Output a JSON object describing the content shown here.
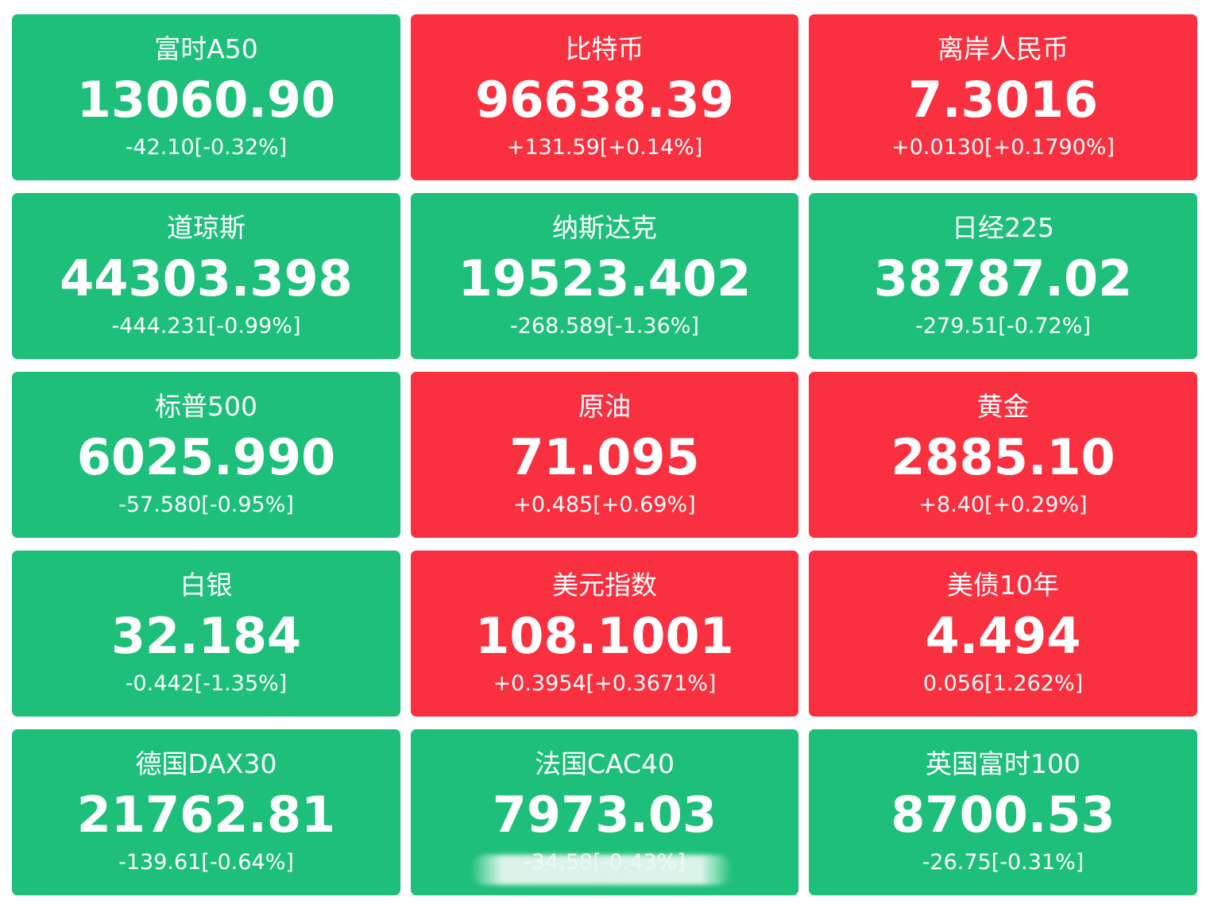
{
  "tiles": [
    {
      "name": "富时A50",
      "price": "13060.90",
      "change": "-42.10[-0.32%]",
      "trend": "down"
    },
    {
      "name": "比特币",
      "price": "96638.39",
      "change": "+131.59[+0.14%]",
      "trend": "up"
    },
    {
      "name": "离岸人民币",
      "price": "7.3016",
      "change": "+0.0130[+0.1790%]",
      "trend": "up"
    },
    {
      "name": "道琼斯",
      "price": "44303.398",
      "change": "-444.231[-0.99%]",
      "trend": "down"
    },
    {
      "name": "纳斯达克",
      "price": "19523.402",
      "change": "-268.589[-1.36%]",
      "trend": "down"
    },
    {
      "name": "日经225",
      "price": "38787.02",
      "change": "-279.51[-0.72%]",
      "trend": "down"
    },
    {
      "name": "标普500",
      "price": "6025.990",
      "change": "-57.580[-0.95%]",
      "trend": "down"
    },
    {
      "name": "原油",
      "price": "71.095",
      "change": "+0.485[+0.69%]",
      "trend": "up"
    },
    {
      "name": "黄金",
      "price": "2885.10",
      "change": "+8.40[+0.29%]",
      "trend": "up"
    },
    {
      "name": "白银",
      "price": "32.184",
      "change": "-0.442[-1.35%]",
      "trend": "down"
    },
    {
      "name": "美元指数",
      "price": "108.1001",
      "change": "+0.3954[+0.3671%]",
      "trend": "up"
    },
    {
      "name": "美债10年",
      "price": "4.494",
      "change": "0.056[1.262%]",
      "trend": "up"
    },
    {
      "name": "德国DAX30",
      "price": "21762.81",
      "change": "-139.61[-0.64%]",
      "trend": "down"
    },
    {
      "name": "法国CAC40",
      "price": "7973.03",
      "change": "-34.58[-0.43%]",
      "trend": "down"
    },
    {
      "name": "英国富时100",
      "price": "8700.53",
      "change": "-26.75[-0.31%]",
      "trend": "down"
    }
  ],
  "colors": {
    "up": "#f8303f",
    "down": "#1dbf7a",
    "text": "#ffffff"
  }
}
